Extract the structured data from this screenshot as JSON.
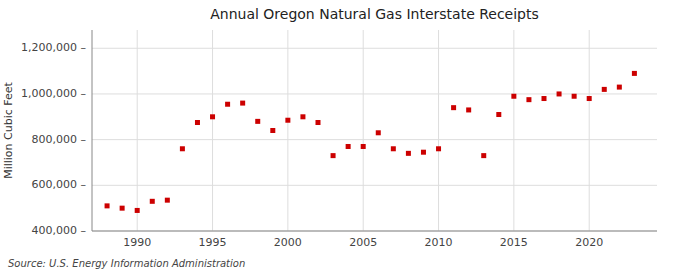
{
  "chart_data": {
    "type": "scatter",
    "title": "Annual Oregon Natural Gas Interstate Receipts",
    "ylabel": "Million Cubic Feet",
    "annotations": [
      "Source: U.S. Energy Information Administration"
    ],
    "x": [
      1988,
      1989,
      1990,
      1991,
      1992,
      1993,
      1994,
      1995,
      1996,
      1997,
      1998,
      1999,
      2000,
      2001,
      2002,
      2003,
      2004,
      2005,
      2006,
      2007,
      2008,
      2009,
      2010,
      2011,
      2012,
      2013,
      2014,
      2015,
      2016,
      2017,
      2018,
      2019,
      2020,
      2021,
      2022,
      2023
    ],
    "values": [
      510000,
      500000,
      490000,
      530000,
      535000,
      760000,
      875000,
      900000,
      955000,
      960000,
      880000,
      840000,
      885000,
      900000,
      875000,
      730000,
      770000,
      770000,
      830000,
      760000,
      740000,
      745000,
      760000,
      940000,
      930000,
      730000,
      910000,
      990000,
      975000,
      980000,
      1000000,
      990000,
      980000,
      1020000,
      1030000,
      1090000
    ],
    "color": "#cc0000",
    "marker": "square",
    "xlim": [
      1987,
      2024.5
    ],
    "ylim": [
      400000,
      1280000
    ],
    "xticks": [
      1990,
      1995,
      2000,
      2005,
      2010,
      2015,
      2020
    ],
    "yticks": [
      {
        "value": 400000,
        "label": "400,000 –"
      },
      {
        "value": 600000,
        "label": "600,000 –"
      },
      {
        "value": 800000,
        "label": "800,000 –"
      },
      {
        "value": 1000000,
        "label": "1,000,000 –"
      },
      {
        "value": 1200000,
        "label": "1,200,000 –"
      }
    ],
    "grid": true
  }
}
